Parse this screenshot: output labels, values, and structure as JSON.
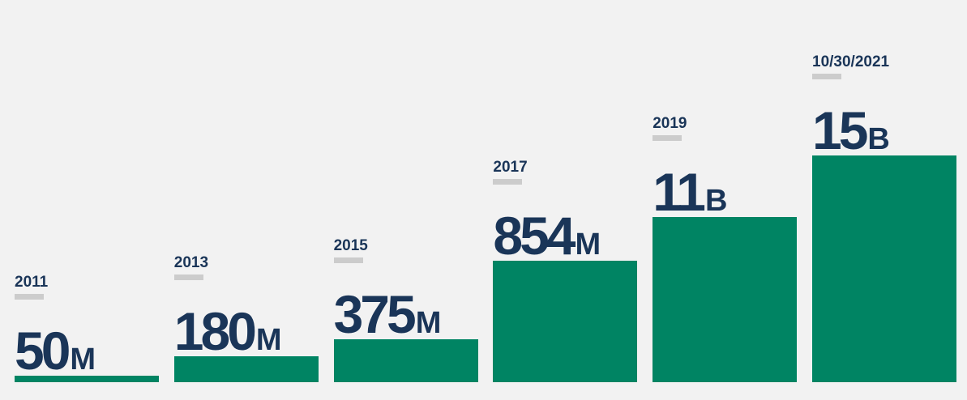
{
  "chart_data": {
    "type": "bar",
    "categories": [
      "2011",
      "2013",
      "2015",
      "2017",
      "2019",
      "10/30/2021"
    ],
    "value_labels": [
      {
        "number": "50",
        "unit": "M"
      },
      {
        "number": "180",
        "unit": "M"
      },
      {
        "number": "375",
        "unit": "M"
      },
      {
        "number": "854",
        "unit": "M"
      },
      {
        "number": "11",
        "unit": "B"
      },
      {
        "number": "15",
        "unit": "B"
      }
    ],
    "values": [
      8,
      32,
      53,
      150,
      204,
      280
    ],
    "ylim": [
      0,
      280
    ],
    "title": "",
    "xlabel": "",
    "ylabel": "",
    "grid": false,
    "colors": {
      "bar": "#008463",
      "text": "#1a3558",
      "tick": "#cccccc",
      "background": "#f2f2f2"
    }
  }
}
